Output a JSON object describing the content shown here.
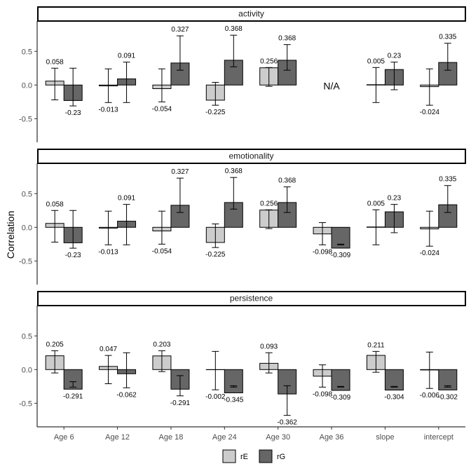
{
  "chart_data": {
    "type": "bar",
    "ylabel": "Correlation",
    "categories": [
      "Age 6",
      "Age 12",
      "Age 18",
      "Age 24",
      "Age 30",
      "Age 36",
      "slope",
      "intercept"
    ],
    "y_ticks": [
      "0.5",
      "0.0",
      "-0.5"
    ],
    "ylim": [
      -0.85,
      0.95
    ],
    "legend": {
      "position": "bottom",
      "entries": [
        "rE",
        "rG"
      ]
    },
    "colors": {
      "rE": "#cccccc",
      "rG": "#666666"
    },
    "panels": [
      {
        "title": "activity",
        "na_label": "N/A",
        "series": [
          {
            "name": "rE",
            "values": [
              0.058,
              -0.013,
              -0.054,
              -0.225,
              0.256,
              null,
              0.005,
              -0.024
            ],
            "labels": [
              "0.058",
              "-0.013",
              "-0.054",
              "-0.225",
              "0.256",
              "",
              "0.005",
              "-0.024"
            ],
            "err_low": [
              -0.22,
              -0.26,
              -0.25,
              -0.3,
              -0.02,
              null,
              -0.26,
              -0.3
            ],
            "err_high": [
              0.25,
              0.24,
              0.24,
              0.04,
              0.26,
              null,
              0.26,
              0.24
            ]
          },
          {
            "name": "rG",
            "values": [
              -0.23,
              0.091,
              0.327,
              0.368,
              0.368,
              null,
              0.23,
              0.335
            ],
            "labels": [
              "-0.23",
              "0.091",
              "0.327",
              "0.368",
              "0.368",
              "",
              "0.23",
              "0.335"
            ],
            "err_low": [
              -0.31,
              -0.26,
              0.22,
              0.27,
              0.22,
              null,
              -0.07,
              0.22
            ],
            "err_high": [
              0.25,
              0.34,
              0.73,
              0.74,
              0.6,
              null,
              0.34,
              0.62
            ]
          }
        ]
      },
      {
        "title": "emotionality",
        "series": [
          {
            "name": "rE",
            "values": [
              0.058,
              -0.013,
              -0.054,
              -0.225,
              0.256,
              -0.098,
              0.005,
              -0.024
            ],
            "labels": [
              "0.058",
              "-0.013",
              "-0.054",
              "-0.225",
              "0.256",
              "-0.098",
              "0.005",
              "-0.024"
            ],
            "err_low": [
              -0.22,
              -0.26,
              -0.25,
              -0.3,
              -0.02,
              -0.26,
              -0.26,
              -0.28
            ],
            "err_high": [
              0.25,
              0.24,
              0.24,
              0.05,
              0.26,
              0.07,
              0.26,
              0.24
            ]
          },
          {
            "name": "rG",
            "values": [
              -0.23,
              0.091,
              0.327,
              0.368,
              0.368,
              -0.309,
              0.23,
              0.335
            ],
            "labels": [
              "-0.23",
              "0.091",
              "0.327",
              "0.368",
              "0.368",
              "-0.309",
              "0.23",
              "0.335"
            ],
            "err_low": [
              -0.31,
              -0.26,
              0.22,
              0.27,
              0.22,
              -0.26,
              -0.08,
              0.22
            ],
            "err_high": [
              0.25,
              0.34,
              0.73,
              0.74,
              0.6,
              -0.25,
              0.34,
              0.62
            ]
          }
        ]
      },
      {
        "title": "persistence",
        "series": [
          {
            "name": "rE",
            "values": [
              0.205,
              0.047,
              0.203,
              -0.002,
              0.093,
              -0.098,
              0.211,
              -0.006
            ],
            "labels": [
              "0.205",
              "0.047",
              "0.203",
              "-0.002",
              "0.093",
              "-0.098",
              "0.211",
              "-0.006"
            ],
            "err_low": [
              -0.05,
              -0.21,
              -0.03,
              -0.3,
              -0.05,
              -0.26,
              -0.04,
              -0.28
            ],
            "err_high": [
              0.28,
              0.21,
              0.28,
              0.27,
              0.25,
              0.07,
              0.27,
              0.26
            ]
          },
          {
            "name": "rG",
            "values": [
              -0.291,
              -0.062,
              -0.291,
              -0.345,
              -0.362,
              -0.309,
              -0.304,
              -0.302
            ],
            "labels": [
              "-0.291",
              "-0.062",
              "-0.291",
              "-0.345",
              "-0.362",
              "-0.309",
              "-0.304",
              "-0.302"
            ],
            "err_low": [
              -0.26,
              -0.27,
              -0.39,
              -0.26,
              -0.68,
              -0.26,
              -0.26,
              -0.26
            ],
            "err_high": [
              -0.18,
              0.25,
              -0.09,
              -0.24,
              -0.24,
              -0.25,
              -0.25,
              -0.24
            ]
          }
        ]
      }
    ]
  }
}
